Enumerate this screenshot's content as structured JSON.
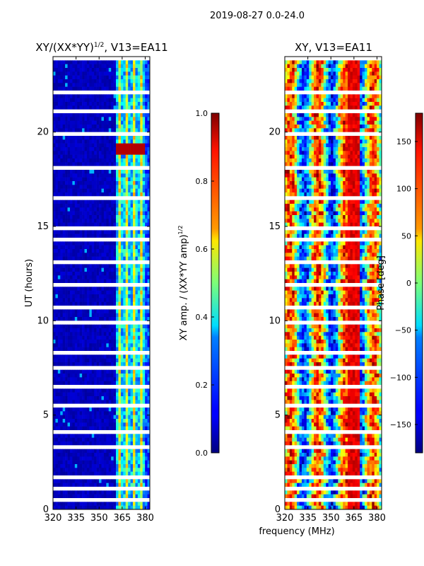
{
  "figure": {
    "suptitle": "2019-08-27 0.0-24.0",
    "common_xlabel": "frequency (MHz)"
  },
  "chart_data": [
    {
      "type": "heatmap",
      "title": "XY/(XX*YY)",
      "title_sup": "1/2",
      "title_rest": ", V13=EA11",
      "xlabel": "",
      "ylabel": "UT (hours)",
      "xlim": [
        320,
        383
      ],
      "ylim": [
        0,
        24
      ],
      "xticks": [
        320,
        335,
        350,
        365,
        380
      ],
      "yticks": [
        0,
        5,
        10,
        15,
        20
      ],
      "colormap": "jet",
      "colorbar": {
        "label": "XY amp. / (XX*YY amp)",
        "label_sup": "1/2",
        "range": [
          0.0,
          1.0
        ],
        "ticks": [
          "0.0",
          "0.2",
          "0.4",
          "0.6",
          "0.8",
          "1.0"
        ]
      }
    },
    {
      "type": "heatmap",
      "title": "XY, V13=EA11",
      "xlabel": "",
      "ylabel": "",
      "xlim": [
        320,
        383
      ],
      "ylim": [
        0,
        24
      ],
      "xticks": [
        320,
        335,
        350,
        365,
        380
      ],
      "yticks": [
        0,
        5,
        10,
        15,
        20
      ],
      "colormap": "jet",
      "colorbar": {
        "label": "Phase [deg]",
        "range": [
          -180,
          180
        ],
        "ticks": [
          "−150",
          "−100",
          "−50",
          "0",
          "50",
          "100",
          "150"
        ]
      }
    }
  ]
}
